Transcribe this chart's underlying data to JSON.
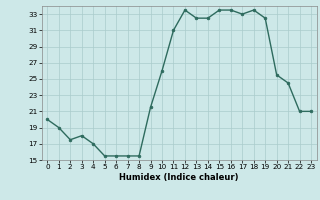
{
  "x": [
    0,
    1,
    2,
    3,
    4,
    5,
    6,
    7,
    8,
    9,
    10,
    11,
    12,
    13,
    14,
    15,
    16,
    17,
    18,
    19,
    20,
    21,
    22,
    23
  ],
  "y": [
    20,
    19,
    17.5,
    18,
    17,
    15.5,
    15.5,
    15.5,
    15.5,
    21.5,
    26,
    31,
    33.5,
    32.5,
    32.5,
    33.5,
    33.5,
    33,
    33.5,
    32.5,
    25.5,
    24.5,
    21,
    21
  ],
  "line_color": "#2e6b5e",
  "marker_color": "#2e6b5e",
  "bg_color": "#cde8e8",
  "grid_color": "#aacccc",
  "xlabel": "Humidex (Indice chaleur)",
  "xlim": [
    -0.5,
    23.5
  ],
  "ylim": [
    15,
    34
  ],
  "yticks": [
    15,
    17,
    19,
    21,
    23,
    25,
    27,
    29,
    31,
    33
  ],
  "xticks": [
    0,
    1,
    2,
    3,
    4,
    5,
    6,
    7,
    8,
    9,
    10,
    11,
    12,
    13,
    14,
    15,
    16,
    17,
    18,
    19,
    20,
    21,
    22,
    23
  ],
  "xtick_labels": [
    "0",
    "1",
    "2",
    "3",
    "4",
    "5",
    "6",
    "7",
    "8",
    "9",
    "10",
    "11",
    "12",
    "13",
    "14",
    "15",
    "16",
    "17",
    "18",
    "19",
    "20",
    "21",
    "22",
    "23"
  ]
}
